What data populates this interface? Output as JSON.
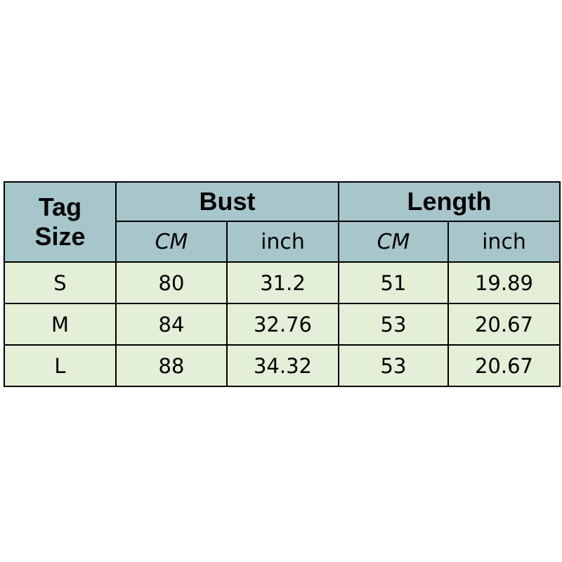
{
  "table": {
    "tag_size_header": [
      "Tag",
      "Size"
    ],
    "groups": [
      "Bust",
      "Length"
    ],
    "units": [
      "CM",
      "inch",
      "CM",
      "inch"
    ],
    "rows": [
      {
        "size": "S",
        "values": [
          "80",
          "31.2",
          "51",
          "19.89"
        ]
      },
      {
        "size": "M",
        "values": [
          "84",
          "32.76",
          "53",
          "20.67"
        ]
      },
      {
        "size": "L",
        "values": [
          "88",
          "34.32",
          "53",
          "20.67"
        ]
      }
    ],
    "colors": {
      "header": "#a6c6cc",
      "body": "#e3efd6",
      "border": "#000000"
    }
  }
}
